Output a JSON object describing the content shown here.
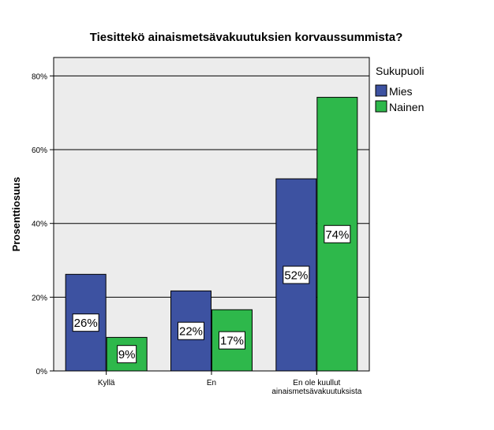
{
  "chart_data": {
    "type": "bar",
    "title": "Tiesittekö ainaismetsävakuutuksien korvaussummista?",
    "xlabel": "",
    "ylabel": "Prosenttiosuus",
    "ylim": [
      0,
      85
    ],
    "yticks": [
      0,
      20,
      40,
      60,
      80
    ],
    "ytick_labels": [
      "0%",
      "20%",
      "40%",
      "60%",
      "80%"
    ],
    "categories": [
      [
        "Kyllä"
      ],
      [
        "En"
      ],
      [
        "En ole kuullut",
        "ainaismetsävakuutuksista"
      ]
    ],
    "series": [
      {
        "name": "Mies",
        "color": "#3d52a1",
        "values": [
          26.2,
          21.7,
          52.1
        ],
        "labels": [
          "26%",
          "22%",
          "52%"
        ]
      },
      {
        "name": "Nainen",
        "color": "#2eb84b",
        "values": [
          9.1,
          16.6,
          74.2
        ],
        "labels": [
          "9%",
          "17%",
          "74%"
        ]
      }
    ],
    "legend": {
      "title": "Sukupuoli",
      "placement": "right"
    },
    "grid": true,
    "plot_background": "#ececec"
  }
}
